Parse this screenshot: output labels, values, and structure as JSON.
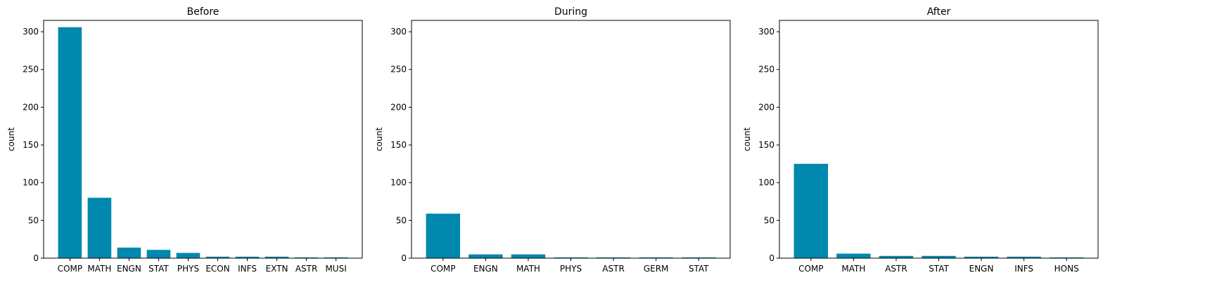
{
  "colors": {
    "bar": "#0088AE",
    "axis": "#000000"
  },
  "chart_data": [
    {
      "type": "bar",
      "title": "Before",
      "xlabel": "",
      "ylabel": "count",
      "ylim": [
        0,
        315
      ],
      "yticks": [
        0,
        50,
        100,
        150,
        200,
        250,
        300
      ],
      "categories": [
        "COMP",
        "MATH",
        "ENGN",
        "STAT",
        "PHYS",
        "ECON",
        "INFS",
        "EXTN",
        "ASTR",
        "MUSI"
      ],
      "values": [
        306,
        80,
        14,
        11,
        7,
        2,
        2,
        2,
        1,
        1
      ],
      "grid": false
    },
    {
      "type": "bar",
      "title": "During",
      "xlabel": "",
      "ylabel": "count",
      "ylim": [
        0,
        315
      ],
      "yticks": [
        0,
        50,
        100,
        150,
        200,
        250,
        300
      ],
      "categories": [
        "COMP",
        "ENGN",
        "MATH",
        "PHYS",
        "ASTR",
        "GERM",
        "STAT"
      ],
      "values": [
        59,
        5,
        5,
        1,
        1,
        1,
        1
      ],
      "grid": false
    },
    {
      "type": "bar",
      "title": "After",
      "xlabel": "",
      "ylabel": "count",
      "ylim": [
        0,
        315
      ],
      "yticks": [
        0,
        50,
        100,
        150,
        200,
        250,
        300
      ],
      "categories": [
        "COMP",
        "MATH",
        "ASTR",
        "STAT",
        "ENGN",
        "INFS",
        "HONS"
      ],
      "values": [
        125,
        6,
        3,
        3,
        2,
        2,
        1
      ],
      "grid": false
    }
  ]
}
